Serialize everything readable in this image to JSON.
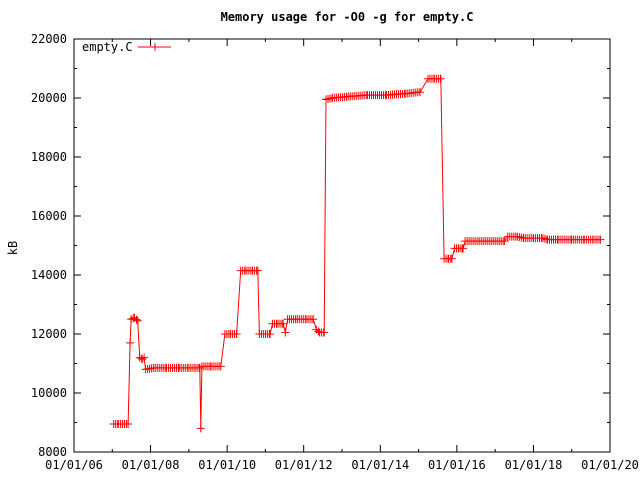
{
  "chart_data": {
    "type": "line",
    "title": "Memory usage for -O0 -g for empty.C",
    "xlabel": "",
    "ylabel": "kB",
    "xlim": [
      "2006-01-01",
      "2020-01-01"
    ],
    "ylim": [
      8000,
      22000
    ],
    "x_tick_labels": [
      "01/01/06",
      "01/01/08",
      "01/01/10",
      "01/01/12",
      "01/01/14",
      "01/01/16",
      "01/01/18",
      "01/01/20"
    ],
    "y_tick_labels": [
      "8000",
      "10000",
      "12000",
      "14000",
      "16000",
      "18000",
      "20000",
      "22000"
    ],
    "legend": {
      "position": "top-left"
    },
    "grid": false,
    "series": [
      {
        "name": "empty.C",
        "color": "#ff0000",
        "marker": "plus",
        "points": [
          [
            "2007-01-15",
            8950
          ],
          [
            "2007-03-01",
            8950
          ],
          [
            "2007-06-01",
            8950
          ],
          [
            "2007-06-20",
            11700
          ],
          [
            "2007-07-01",
            12500
          ],
          [
            "2007-08-01",
            12550
          ],
          [
            "2007-09-01",
            12450
          ],
          [
            "2007-09-20",
            11200
          ],
          [
            "2007-10-15",
            11150
          ],
          [
            "2007-11-01",
            11200
          ],
          [
            "2007-11-15",
            10800
          ],
          [
            "2008-02-01",
            10850
          ],
          [
            "2008-06-01",
            10850
          ],
          [
            "2008-10-01",
            10850
          ],
          [
            "2009-01-01",
            10850
          ],
          [
            "2009-03-01",
            10850
          ],
          [
            "2009-04-15",
            10850
          ],
          [
            "2009-04-25",
            8800
          ],
          [
            "2009-05-05",
            10900
          ],
          [
            "2009-08-01",
            10900
          ],
          [
            "2009-11-01",
            10900
          ],
          [
            "2009-12-10",
            12000
          ],
          [
            "2010-02-01",
            12000
          ],
          [
            "2010-04-01",
            12000
          ],
          [
            "2010-05-10",
            14150
          ],
          [
            "2010-07-01",
            14150
          ],
          [
            "2010-09-01",
            14150
          ],
          [
            "2010-10-20",
            14150
          ],
          [
            "2010-11-05",
            12000
          ],
          [
            "2011-01-01",
            12000
          ],
          [
            "2011-02-15",
            12000
          ],
          [
            "2011-03-10",
            12350
          ],
          [
            "2011-05-01",
            12350
          ],
          [
            "2011-06-20",
            12350
          ],
          [
            "2011-07-10",
            12050
          ],
          [
            "2011-08-01",
            12500
          ],
          [
            "2011-11-01",
            12500
          ],
          [
            "2012-02-01",
            12500
          ],
          [
            "2012-04-01",
            12500
          ],
          [
            "2012-05-01",
            12150
          ],
          [
            "2012-06-01",
            12050
          ],
          [
            "2012-07-15",
            12050
          ],
          [
            "2012-08-01",
            19950
          ],
          [
            "2012-10-01",
            20000
          ],
          [
            "2013-03-01",
            20050
          ],
          [
            "2013-09-01",
            20100
          ],
          [
            "2014-03-01",
            20100
          ],
          [
            "2014-09-01",
            20150
          ],
          [
            "2015-01-15",
            20200
          ],
          [
            "2015-04-01",
            20650
          ],
          [
            "2015-06-01",
            20650
          ],
          [
            "2015-08-01",
            20650
          ],
          [
            "2015-09-01",
            14550
          ],
          [
            "2015-10-15",
            14550
          ],
          [
            "2015-11-15",
            14550
          ],
          [
            "2015-12-10",
            14900
          ],
          [
            "2016-02-01",
            14900
          ],
          [
            "2016-03-01",
            14900
          ],
          [
            "2016-03-20",
            15150
          ],
          [
            "2016-08-01",
            15150
          ],
          [
            "2017-01-01",
            15150
          ],
          [
            "2017-04-01",
            15150
          ],
          [
            "2017-05-01",
            15300
          ],
          [
            "2017-08-01",
            15300
          ],
          [
            "2017-10-01",
            15250
          ],
          [
            "2018-01-01",
            15250
          ],
          [
            "2018-04-01",
            15250
          ],
          [
            "2018-05-15",
            15200
          ],
          [
            "2018-09-01",
            15200
          ],
          [
            "2019-01-01",
            15200
          ],
          [
            "2019-05-01",
            15200
          ],
          [
            "2019-08-01",
            15200
          ],
          [
            "2019-10-01",
            15200
          ]
        ]
      }
    ]
  }
}
